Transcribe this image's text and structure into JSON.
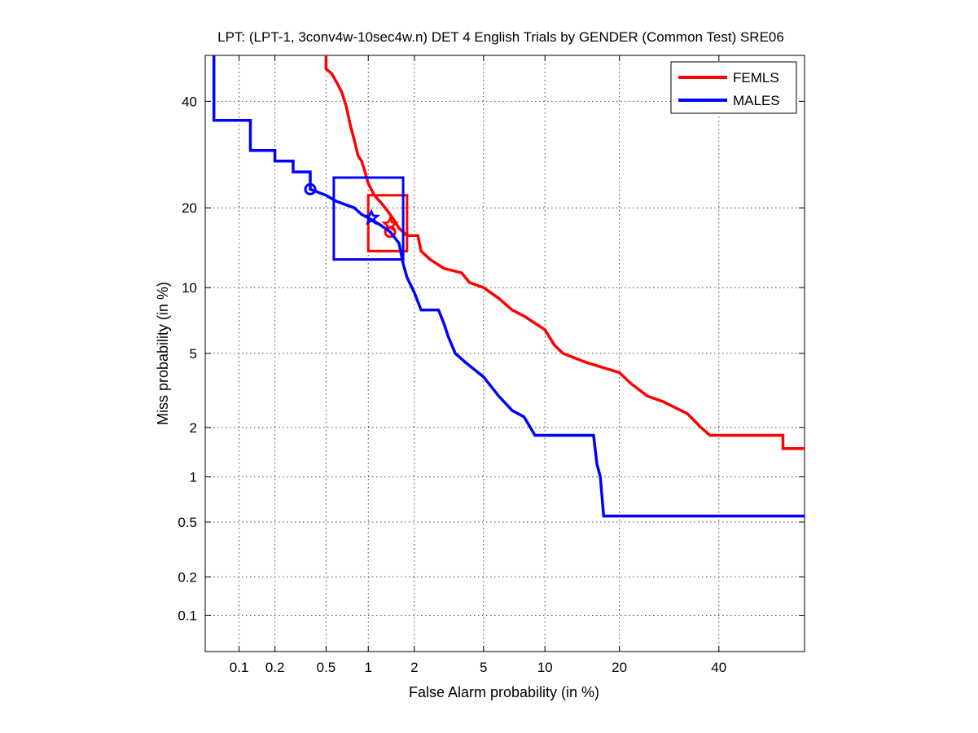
{
  "chart_data": {
    "type": "line",
    "title": "LPT: (LPT-1, 3conv4w-10sec4w.n) DET 4 English Trials by GENDER (Common Test) SRE06",
    "xlabel": "False Alarm probability (in %)",
    "ylabel": "Miss probability (in %)",
    "x_scale": "normal-deviate (probit)",
    "y_scale": "normal-deviate (probit)",
    "xlim": [
      0.05,
      60
    ],
    "ylim": [
      0.05,
      50
    ],
    "x_ticks": [
      0.1,
      0.2,
      0.5,
      1,
      2,
      5,
      10,
      20,
      40
    ],
    "y_ticks": [
      0.1,
      0.2,
      0.5,
      1,
      2,
      5,
      10,
      20,
      40
    ],
    "x_tick_labels": [
      "0.1",
      "0.2",
      "0.5",
      "1",
      "2",
      "5",
      "10",
      "20",
      "40"
    ],
    "y_tick_labels": [
      "0.1",
      "0.2",
      "0.5",
      "1",
      "2",
      "5",
      "10",
      "20",
      "40"
    ],
    "grid": true,
    "legend_position": "top-right",
    "series": [
      {
        "name": "FEMLS",
        "color": "#ff0000",
        "points": [
          [
            0.5,
            50
          ],
          [
            0.5,
            47
          ],
          [
            0.55,
            46
          ],
          [
            0.6,
            44
          ],
          [
            0.65,
            42
          ],
          [
            0.7,
            39
          ],
          [
            0.75,
            35
          ],
          [
            0.8,
            32
          ],
          [
            0.85,
            29
          ],
          [
            0.9,
            28
          ],
          [
            0.95,
            26
          ],
          [
            1.0,
            24
          ],
          [
            1.1,
            22
          ],
          [
            1.2,
            21
          ],
          [
            1.3,
            20
          ],
          [
            1.4,
            19
          ],
          [
            1.5,
            18
          ],
          [
            1.6,
            17
          ],
          [
            1.8,
            16
          ],
          [
            2.1,
            16
          ],
          [
            2.2,
            14
          ],
          [
            2.5,
            13
          ],
          [
            3.0,
            12
          ],
          [
            3.8,
            11.5
          ],
          [
            4.2,
            10.5
          ],
          [
            5.0,
            10
          ],
          [
            6.0,
            9
          ],
          [
            7.0,
            8
          ],
          [
            8.0,
            7.5
          ],
          [
            10.0,
            6.5
          ],
          [
            11.0,
            5.5
          ],
          [
            12.0,
            5
          ],
          [
            15.0,
            4.5
          ],
          [
            20.0,
            4
          ],
          [
            22.0,
            3.5
          ],
          [
            25.0,
            3.0
          ],
          [
            28.0,
            2.8
          ],
          [
            33.0,
            2.4
          ],
          [
            36.0,
            2.0
          ],
          [
            38.0,
            1.8
          ],
          [
            55.0,
            1.8
          ],
          [
            55.0,
            1.5
          ],
          [
            60.0,
            1.5
          ]
        ],
        "markers": [
          {
            "shape": "circle",
            "x": 1.4,
            "y": 16.5
          },
          {
            "shape": "star",
            "x": 1.4,
            "y": 17.5
          }
        ],
        "confidence_box": {
          "x": [
            1.0,
            1.8
          ],
          "y": [
            14,
            22
          ]
        }
      },
      {
        "name": "MALES",
        "color": "#0000ff",
        "points": [
          [
            0.06,
            50
          ],
          [
            0.06,
            36
          ],
          [
            0.125,
            36
          ],
          [
            0.125,
            30
          ],
          [
            0.2,
            30
          ],
          [
            0.2,
            28
          ],
          [
            0.28,
            28
          ],
          [
            0.28,
            26
          ],
          [
            0.38,
            26
          ],
          [
            0.38,
            23
          ],
          [
            0.5,
            22
          ],
          [
            0.6,
            21
          ],
          [
            0.8,
            20
          ],
          [
            0.9,
            19
          ],
          [
            1.0,
            18.5
          ],
          [
            1.2,
            17.5
          ],
          [
            1.4,
            16.5
          ],
          [
            1.6,
            15
          ],
          [
            1.7,
            12.5
          ],
          [
            1.8,
            11
          ],
          [
            2.0,
            9.5
          ],
          [
            2.2,
            8
          ],
          [
            2.8,
            8
          ],
          [
            3.0,
            7
          ],
          [
            3.2,
            6
          ],
          [
            3.5,
            5
          ],
          [
            4.0,
            4.5
          ],
          [
            5.0,
            3.8
          ],
          [
            6.0,
            3.0
          ],
          [
            7.0,
            2.5
          ],
          [
            8.0,
            2.3
          ],
          [
            9.0,
            1.8
          ],
          [
            16.0,
            1.8
          ],
          [
            16.5,
            1.2
          ],
          [
            17.0,
            1.0
          ],
          [
            17.5,
            0.55
          ],
          [
            60.0,
            0.55
          ]
        ],
        "markers": [
          {
            "shape": "circle",
            "x": 0.38,
            "y": 23
          },
          {
            "shape": "star",
            "x": 1.05,
            "y": 18.5
          }
        ],
        "confidence_box": {
          "x": [
            0.57,
            1.7
          ],
          "y": [
            13,
            25
          ]
        }
      }
    ]
  }
}
